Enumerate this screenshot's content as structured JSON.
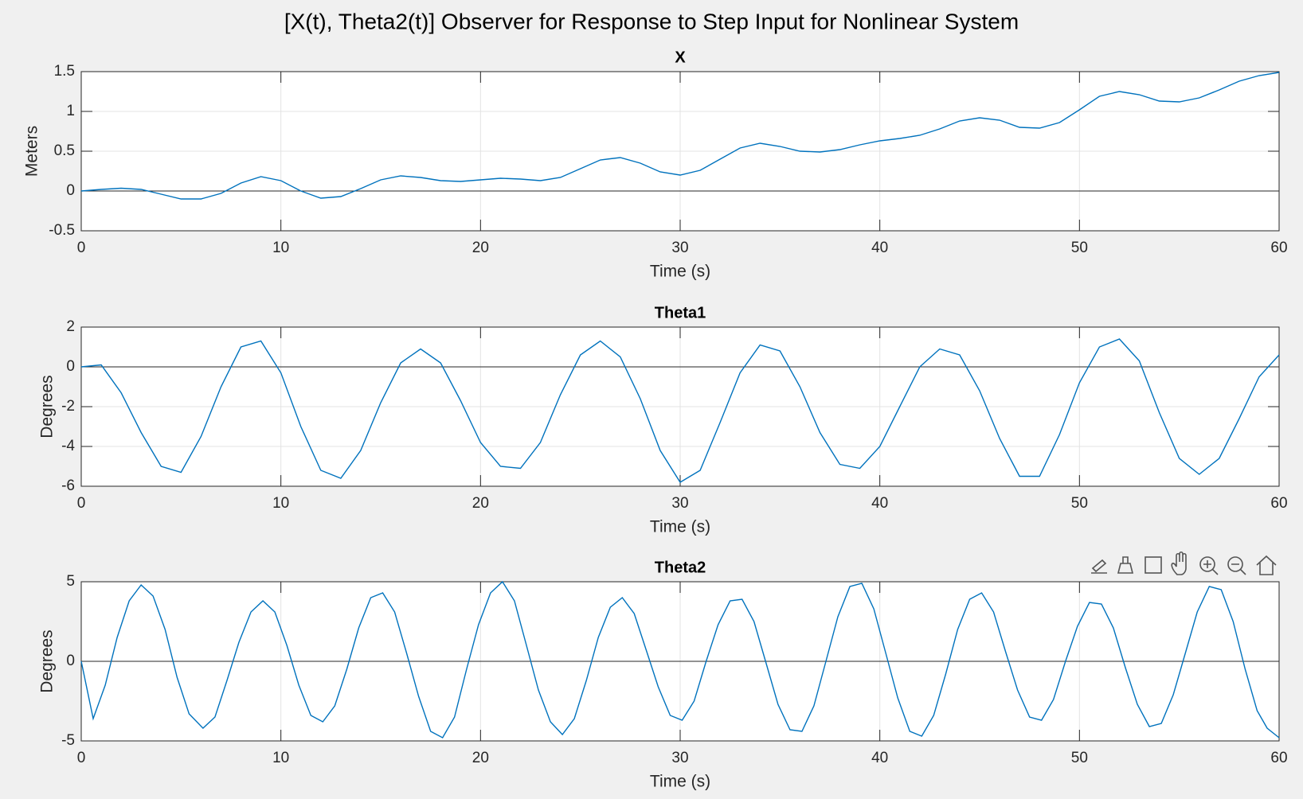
{
  "title": "[X(t), Theta2(t)] Observer for Response to Step Input for Nonlinear System",
  "chart_data": [
    {
      "type": "line",
      "title": "X",
      "xlabel": "Time (s)",
      "ylabel": "Meters",
      "x": [
        0,
        1,
        2,
        3,
        4,
        5,
        6,
        7,
        8,
        9,
        10,
        11,
        12,
        13,
        14,
        15,
        16,
        17,
        18,
        19,
        20,
        21,
        22,
        23,
        24,
        25,
        26,
        27,
        28,
        29,
        30,
        31,
        32,
        33,
        34,
        35,
        36,
        37,
        38,
        39,
        40,
        41,
        42,
        43,
        44,
        45,
        46,
        47,
        48,
        49,
        50,
        51,
        52,
        53,
        54,
        55,
        56,
        57,
        58,
        59,
        60
      ],
      "series": [
        {
          "color": "#0072bd",
          "values": [
            0,
            0.02,
            0.035,
            0.02,
            -0.04,
            -0.1,
            -0.1,
            -0.03,
            0.1,
            0.18,
            0.13,
            0,
            -0.09,
            -0.07,
            0.03,
            0.14,
            0.19,
            0.17,
            0.13,
            0.12,
            0.14,
            0.16,
            0.15,
            0.13,
            0.17,
            0.28,
            0.39,
            0.42,
            0.35,
            0.24,
            0.2,
            0.26,
            0.4,
            0.54,
            0.6,
            0.56,
            0.5,
            0.49,
            0.52,
            0.58,
            0.63,
            0.66,
            0.7,
            0.78,
            0.88,
            0.92,
            0.89,
            0.8,
            0.79,
            0.86,
            1.02,
            1.19,
            1.25,
            1.21,
            1.13,
            1.12,
            1.17,
            1.27,
            1.38,
            1.45,
            1.49
          ]
        }
      ],
      "xlim": [
        0,
        60
      ],
      "ylim": [
        -0.5,
        1.5
      ],
      "xticks": [
        0,
        10,
        20,
        30,
        40,
        50,
        60
      ],
      "yticks": [
        -0.5,
        0,
        0.5,
        1,
        1.5
      ],
      "grid": true
    },
    {
      "type": "line",
      "title": "Theta1",
      "xlabel": "Time (s)",
      "ylabel": "Degrees",
      "x": [
        0,
        1,
        2,
        3,
        4,
        5,
        6,
        7,
        8,
        9,
        10,
        11,
        12,
        13,
        14,
        15,
        16,
        17,
        18,
        19,
        20,
        21,
        22,
        23,
        24,
        25,
        26,
        27,
        28,
        29,
        30,
        31,
        32,
        33,
        34,
        35,
        36,
        37,
        38,
        39,
        40,
        41,
        42,
        43,
        44,
        45,
        46,
        47,
        48,
        49,
        50,
        51,
        52,
        53,
        54,
        55,
        56,
        57,
        58,
        59,
        60
      ],
      "series": [
        {
          "color": "#0072bd",
          "values": [
            0,
            0.1,
            -1.3,
            -3.3,
            -5,
            -5.3,
            -3.5,
            -1,
            1,
            1.3,
            -0.3,
            -3,
            -5.2,
            -5.6,
            -4.2,
            -1.8,
            0.2,
            0.9,
            0.2,
            -1.7,
            -3.8,
            -5,
            -5.1,
            -3.8,
            -1.4,
            0.6,
            1.3,
            0.5,
            -1.6,
            -4.2,
            -5.8,
            -5.2,
            -2.8,
            -0.3,
            1.1,
            0.8,
            -1,
            -3.3,
            -4.9,
            -5.1,
            -4,
            -2,
            0,
            0.9,
            0.6,
            -1.2,
            -3.6,
            -5.5,
            -5.5,
            -3.4,
            -0.8,
            1,
            1.4,
            0.3,
            -2.3,
            -4.6,
            -5.4,
            -4.6,
            -2.6,
            -0.5,
            0.6
          ]
        }
      ],
      "xlim": [
        0,
        60
      ],
      "ylim": [
        -6,
        2
      ],
      "xticks": [
        0,
        10,
        20,
        30,
        40,
        50,
        60
      ],
      "yticks": [
        -6,
        -4,
        -2,
        0,
        2
      ],
      "grid": true
    },
    {
      "type": "line",
      "title": "Theta2",
      "xlabel": "Time (s)",
      "ylabel": "Degrees",
      "x": [
        0,
        0.6,
        1.2,
        1.8,
        2.4,
        3,
        3.6,
        4.2,
        4.8,
        5.4,
        6.1,
        6.7,
        7.3,
        7.9,
        8.5,
        9.1,
        9.7,
        10.3,
        10.9,
        11.5,
        12.1,
        12.7,
        13.3,
        13.9,
        14.5,
        15.1,
        15.7,
        16.3,
        16.9,
        17.5,
        18.1,
        18.7,
        19.3,
        19.9,
        20.5,
        21.1,
        21.7,
        22.3,
        22.9,
        23.5,
        24.1,
        24.7,
        25.3,
        25.9,
        26.5,
        27.1,
        27.7,
        28.3,
        28.9,
        29.5,
        30.1,
        30.7,
        31.3,
        31.9,
        32.5,
        33.1,
        33.7,
        34.3,
        34.9,
        35.5,
        36.1,
        36.7,
        37.3,
        37.9,
        38.5,
        39.1,
        39.7,
        40.3,
        40.9,
        41.5,
        42.1,
        42.7,
        43.3,
        43.9,
        44.5,
        45.1,
        45.7,
        46.3,
        46.9,
        47.5,
        48.1,
        48.7,
        49.3,
        49.9,
        50.5,
        51.1,
        51.7,
        52.3,
        52.9,
        53.5,
        54.1,
        54.7,
        55.3,
        55.9,
        56.5,
        57.1,
        57.7,
        58.3,
        58.9,
        59.4,
        60
      ],
      "series": [
        {
          "color": "#0072bd",
          "values": [
            0,
            -3.6,
            -1.5,
            1.5,
            3.8,
            4.8,
            4.1,
            2,
            -1,
            -3.3,
            -4.2,
            -3.5,
            -1.2,
            1.2,
            3.1,
            3.8,
            3.1,
            1,
            -1.5,
            -3.4,
            -3.8,
            -2.8,
            -0.5,
            2.1,
            4,
            4.3,
            3.1,
            0.5,
            -2.2,
            -4.4,
            -4.8,
            -3.5,
            -0.5,
            2.3,
            4.3,
            5,
            3.8,
            1,
            -1.8,
            -3.8,
            -4.6,
            -3.6,
            -1.2,
            1.5,
            3.4,
            4,
            3,
            0.7,
            -1.6,
            -3.4,
            -3.7,
            -2.5,
            0,
            2.3,
            3.8,
            3.9,
            2.5,
            -0.1,
            -2.7,
            -4.3,
            -4.4,
            -2.8,
            0,
            2.8,
            4.7,
            4.9,
            3.3,
            0.5,
            -2.3,
            -4.4,
            -4.7,
            -3.4,
            -0.8,
            2,
            3.9,
            4.3,
            3.1,
            0.6,
            -1.8,
            -3.5,
            -3.7,
            -2.4,
            0,
            2.2,
            3.7,
            3.6,
            2.1,
            -0.4,
            -2.7,
            -4.1,
            -3.9,
            -2.1,
            0.5,
            3.1,
            4.7,
            4.5,
            2.5,
            -0.5,
            -3.1,
            -4.2,
            -4.8
          ]
        }
      ],
      "xlim": [
        0,
        60
      ],
      "ylim": [
        -5,
        5
      ],
      "xticks": [
        0,
        10,
        20,
        30,
        40,
        50,
        60
      ],
      "yticks": [
        -5,
        0,
        5
      ],
      "grid": true
    }
  ]
}
